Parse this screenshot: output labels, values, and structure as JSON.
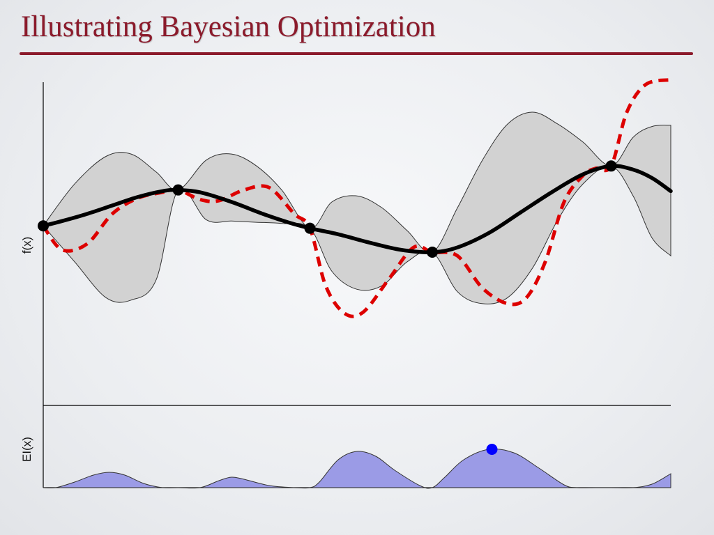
{
  "slide": {
    "title": "Illustrating Bayesian Optimization",
    "title_color": "#8b1a2b"
  },
  "colors": {
    "band_fill": "#d2d2d2",
    "band_stroke": "#333333",
    "mean": "#000000",
    "objective": "#dd0000",
    "ei_fill": "#9b9be6",
    "ei_max": "#0000ff"
  },
  "chart_data": [
    {
      "type": "line",
      "ylabel": "f(x)",
      "xlim": [
        0,
        1
      ],
      "ylim": [
        -1.5,
        1.2
      ],
      "observations": {
        "x": [
          0.0,
          0.215,
          0.425,
          0.62,
          0.905
        ],
        "y": [
          0.0,
          0.3,
          -0.02,
          -0.22,
          0.5
        ]
      },
      "mean": {
        "x": [
          0.0,
          0.03,
          0.07,
          0.11,
          0.15,
          0.19,
          0.215,
          0.25,
          0.3,
          0.35,
          0.39,
          0.425,
          0.47,
          0.52,
          0.57,
          0.62,
          0.66,
          0.71,
          0.76,
          0.81,
          0.86,
          0.905,
          0.94,
          0.97,
          1.0
        ],
        "y": [
          0.0,
          0.04,
          0.1,
          0.17,
          0.24,
          0.29,
          0.3,
          0.28,
          0.2,
          0.1,
          0.03,
          -0.02,
          -0.07,
          -0.14,
          -0.2,
          -0.22,
          -0.18,
          -0.06,
          0.11,
          0.28,
          0.43,
          0.5,
          0.47,
          0.4,
          0.29
        ]
      },
      "band": {
        "x": [
          0.0,
          0.05,
          0.1,
          0.14,
          0.18,
          0.215,
          0.26,
          0.3,
          0.34,
          0.38,
          0.425,
          0.46,
          0.5,
          0.54,
          0.58,
          0.62,
          0.66,
          0.7,
          0.74,
          0.78,
          0.82,
          0.86,
          0.905,
          0.94,
          0.97,
          1.0
        ],
        "upper": [
          0.0,
          0.35,
          0.58,
          0.6,
          0.45,
          0.3,
          0.55,
          0.6,
          0.5,
          0.3,
          -0.02,
          0.2,
          0.25,
          0.15,
          -0.04,
          -0.22,
          0.15,
          0.55,
          0.85,
          0.95,
          0.85,
          0.7,
          0.5,
          0.74,
          0.83,
          0.84
        ],
        "lower": [
          0.0,
          -0.3,
          -0.6,
          -0.62,
          -0.45,
          0.3,
          0.05,
          0.04,
          0.03,
          0.02,
          -0.02,
          -0.38,
          -0.53,
          -0.5,
          -0.3,
          -0.22,
          -0.55,
          -0.65,
          -0.6,
          -0.35,
          0.05,
          0.35,
          0.5,
          0.25,
          -0.1,
          -0.25
        ]
      },
      "objective": {
        "x": [
          0.0,
          0.03,
          0.07,
          0.11,
          0.15,
          0.19,
          0.215,
          0.25,
          0.28,
          0.32,
          0.36,
          0.4,
          0.425,
          0.45,
          0.48,
          0.51,
          0.55,
          0.59,
          0.62,
          0.66,
          0.7,
          0.74,
          0.77,
          0.8,
          0.83,
          0.86,
          0.88,
          0.905,
          0.93,
          0.96,
          1.0
        ],
        "y": [
          0.0,
          -0.2,
          -0.15,
          0.1,
          0.23,
          0.28,
          0.3,
          0.22,
          0.21,
          0.3,
          0.32,
          0.1,
          -0.02,
          -0.5,
          -0.73,
          -0.72,
          -0.45,
          -0.18,
          -0.22,
          -0.25,
          -0.52,
          -0.65,
          -0.6,
          -0.3,
          0.2,
          0.42,
          0.48,
          0.5,
          0.95,
          1.18,
          1.22
        ]
      }
    },
    {
      "type": "area",
      "ylabel": "EI(x)",
      "xlim": [
        0,
        1
      ],
      "ylim": [
        0,
        1
      ],
      "x": [
        0.0,
        0.02,
        0.05,
        0.08,
        0.105,
        0.13,
        0.16,
        0.19,
        0.215,
        0.25,
        0.28,
        0.3,
        0.32,
        0.36,
        0.4,
        0.425,
        0.44,
        0.47,
        0.5,
        0.53,
        0.56,
        0.6,
        0.62,
        0.64,
        0.67,
        0.71,
        0.75,
        0.79,
        0.83,
        0.85,
        0.88,
        0.905,
        0.94,
        0.97,
        1.0
      ],
      "y": [
        0.0,
        0.0,
        0.08,
        0.18,
        0.22,
        0.18,
        0.06,
        0.0,
        0.0,
        0.0,
        0.1,
        0.15,
        0.12,
        0.03,
        0.0,
        0.0,
        0.08,
        0.4,
        0.52,
        0.45,
        0.25,
        0.03,
        0.0,
        0.15,
        0.4,
        0.55,
        0.5,
        0.28,
        0.04,
        0.0,
        0.0,
        0.0,
        0.0,
        0.05,
        0.2
      ],
      "max_point": {
        "x": 0.715,
        "y": 0.55
      }
    }
  ]
}
